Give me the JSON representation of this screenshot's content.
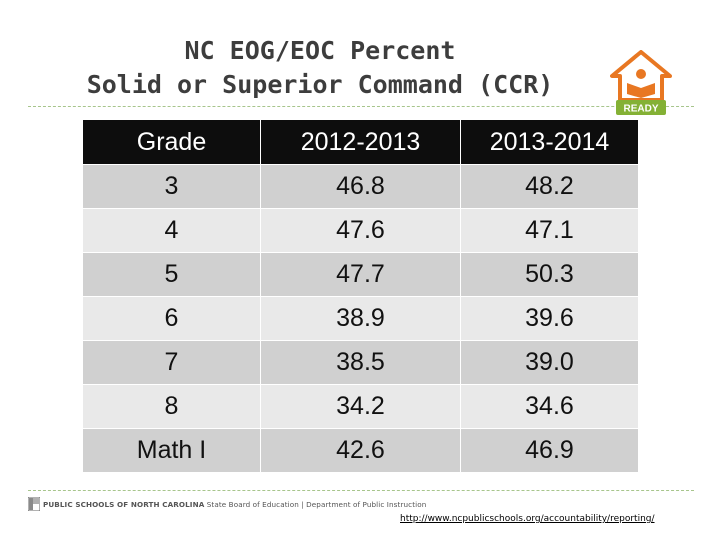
{
  "title": {
    "line1": "NC EOG/EOC Percent",
    "line2": "Solid or Superior Command (CCR)"
  },
  "logo": {
    "text": "READY",
    "icon": "reader-house-icon",
    "color": "#e87722",
    "accent": "#84b135"
  },
  "table": {
    "columns": [
      "Grade",
      "2012-2013",
      "2013-2014"
    ],
    "rows": [
      [
        "3",
        "46.8",
        "48.2"
      ],
      [
        "4",
        "47.6",
        "47.1"
      ],
      [
        "5",
        "47.7",
        "50.3"
      ],
      [
        "6",
        "38.9",
        "39.6"
      ],
      [
        "7",
        "38.5",
        "39.0"
      ],
      [
        "8",
        "34.2",
        "34.6"
      ],
      [
        "Math I",
        "42.6",
        "46.9"
      ]
    ]
  },
  "footer": {
    "org": "PUBLIC SCHOOLS OF NORTH CAROLINA",
    "dept": "State Board of Education | Department of Public Instruction",
    "link": "http://www.ncpublicschools.org/accountability/reporting/"
  }
}
